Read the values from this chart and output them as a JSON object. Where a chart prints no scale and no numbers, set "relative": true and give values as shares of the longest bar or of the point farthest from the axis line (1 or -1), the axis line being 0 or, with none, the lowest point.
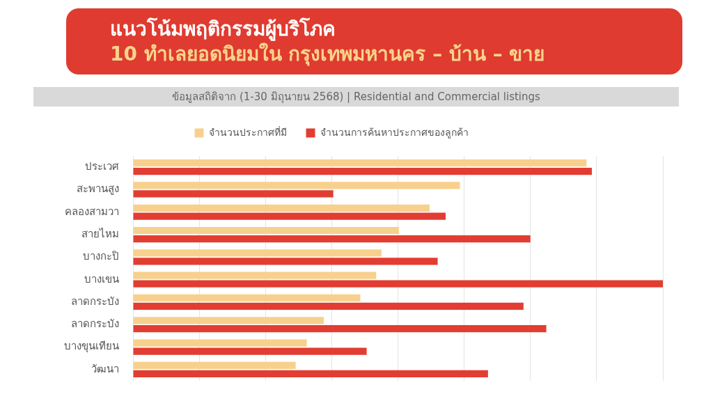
{
  "chart_data": {
    "type": "bar",
    "orientation": "horizontal",
    "relative": true,
    "title": "แนวโน้มพฤติกรรมผู้บริโภค",
    "subtitle": "10 ทำเลยอดนิยมใน กรุงเทพมหานคร – บ้าน – ขาย",
    "annotations": [
      "ข้อมูลสถิติจาก (1-30 มิถุนายน 2568) | Residential and Commercial listings"
    ],
    "categories": [
      "ประเวศ",
      "สะพานสูง",
      "คลองสามวา",
      "สายไหม",
      "บางกะปิ",
      "บางเขน",
      "ลาดกระบัง",
      "ลาดกระบัง",
      "บางขุนเทียน",
      "วัฒนา"
    ],
    "series": [
      {
        "name": "จำนวนประกาศที่มี",
        "color": "#f8d08e",
        "values": [
          0.856,
          0.617,
          0.56,
          0.502,
          0.469,
          0.459,
          0.429,
          0.36,
          0.328,
          0.307
        ]
      },
      {
        "name": "จำนวนการค้นหาประกาศของลูกค้า",
        "color": "#e23d32",
        "values": [
          0.866,
          0.378,
          0.59,
          0.75,
          0.575,
          1,
          0.737,
          0.78,
          0.441,
          0.67
        ]
      }
    ],
    "grid": "x",
    "legend": "top"
  }
}
